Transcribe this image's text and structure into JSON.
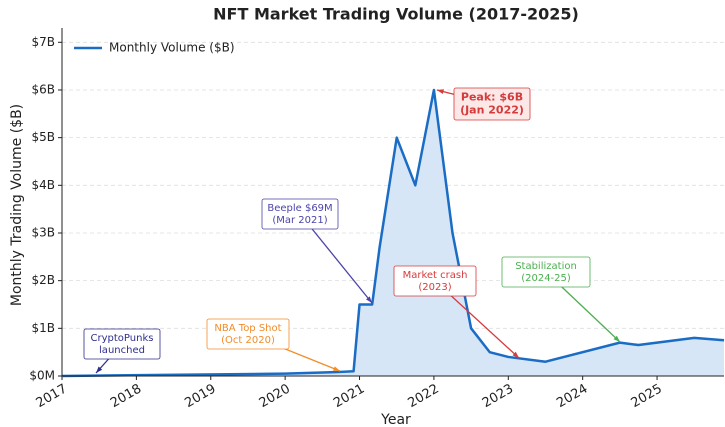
{
  "chart_data": {
    "type": "line",
    "title": "NFT Market Trading Volume (2017-2025)",
    "x_label": "Year",
    "y_label": "Monthly Trading Volume ($B)",
    "xlim": [
      2017,
      2025.9
    ],
    "xticks": [
      2017,
      2018,
      2019,
      2020,
      2021,
      2022,
      2023,
      2024,
      2025
    ],
    "ylim": [
      0,
      7.3
    ],
    "yticks": [
      {
        "value": 0,
        "label": "$0M"
      },
      {
        "value": 1,
        "label": "$1B"
      },
      {
        "value": 2,
        "label": "$2B"
      },
      {
        "value": 3,
        "label": "$3B"
      },
      {
        "value": 4,
        "label": "$4B"
      },
      {
        "value": 5,
        "label": "$5B"
      },
      {
        "value": 6,
        "label": "$6B"
      },
      {
        "value": 7,
        "label": "$7B"
      }
    ],
    "grid": true,
    "legend": "upper left",
    "fill": "#d6e6f6",
    "series": [
      {
        "name": "Monthly Volume ($B)",
        "color": "#1a6cc4",
        "x": [
          2017,
          2020,
          2020.67,
          2020.92,
          2021,
          2021.17,
          2021.27,
          2021.5,
          2021.75,
          2022,
          2022.25,
          2022.5,
          2022.75,
          2023,
          2023.5,
          2024.5,
          2024.75,
          2025.5,
          2025.9
        ],
        "values": [
          0,
          0.05,
          0.08,
          0.1,
          1.5,
          1.5,
          2.7,
          5.0,
          4.0,
          6.0,
          3.0,
          1.0,
          0.5,
          0.4,
          0.3,
          0.7,
          0.65,
          0.8,
          0.75
        ]
      }
    ],
    "annotations": [
      {
        "lines": [
          "CryptoPunks",
          "launched"
        ],
        "color": "#2e2e8f"
      },
      {
        "lines": [
          "NBA Top Shot",
          "(Oct 2020)"
        ],
        "color": "#f28c28"
      },
      {
        "lines": [
          "Beeple $69M",
          "(Mar 2021)"
        ],
        "color": "#4b44a8"
      },
      {
        "lines": [
          "Market crash",
          "(2023)"
        ],
        "color": "#d63b3b"
      },
      {
        "lines": [
          "Stabilization",
          "(2024-25)"
        ],
        "color": "#4caf50"
      },
      {
        "lines": [
          "Peak: $6B",
          "(Jan 2022)"
        ],
        "color": "#d63b3b"
      }
    ]
  }
}
